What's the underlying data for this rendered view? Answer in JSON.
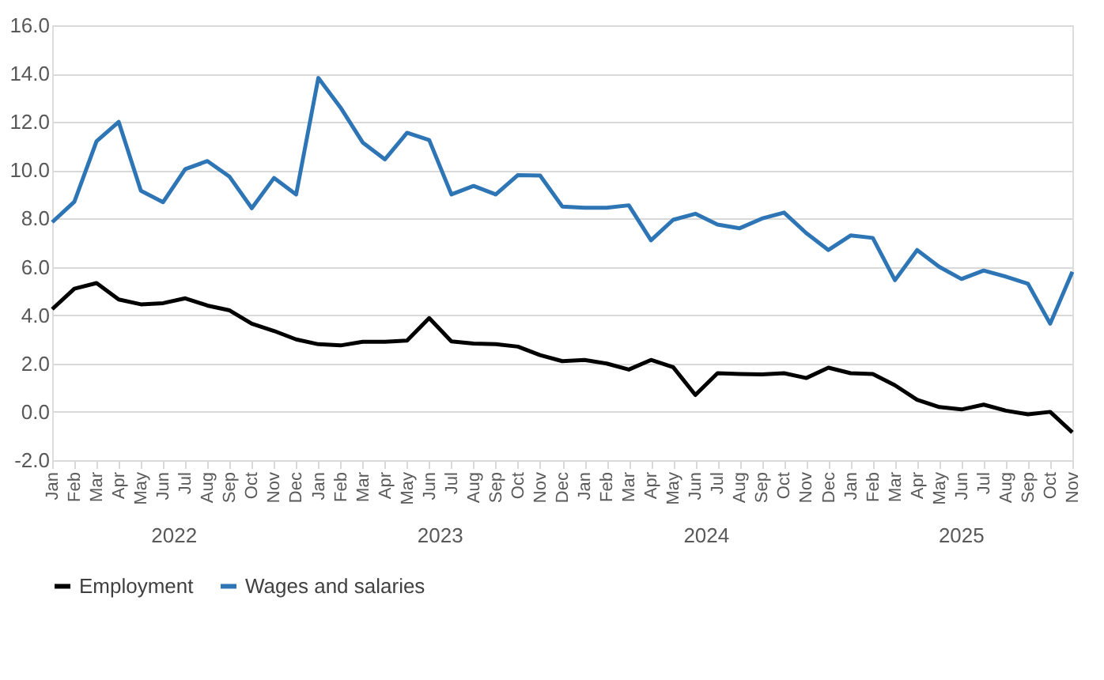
{
  "chart_data": {
    "type": "line",
    "categories": [
      "Jan",
      "Feb",
      "Mar",
      "Apr",
      "May",
      "Jun",
      "Jul",
      "Aug",
      "Sep",
      "Oct",
      "Nov",
      "Dec",
      "Jan",
      "Feb",
      "Mar",
      "Apr",
      "May",
      "Jun",
      "Jul",
      "Aug",
      "Sep",
      "Oct",
      "Nov",
      "Dec",
      "Jan",
      "Feb",
      "Mar",
      "Apr",
      "May",
      "Jun",
      "Jul",
      "Aug",
      "Sep",
      "Oct",
      "Nov",
      "Dec",
      "Jan",
      "Feb",
      "Mar",
      "Apr",
      "May",
      "Jun",
      "Jul",
      "Aug",
      "Sep",
      "Oct",
      "Nov"
    ],
    "series": [
      {
        "name": "Employment",
        "color": "#000000",
        "values": [
          4.25,
          5.1,
          5.33,
          4.65,
          4.45,
          4.5,
          4.7,
          4.4,
          4.2,
          3.65,
          3.35,
          3.0,
          2.8,
          2.75,
          2.9,
          2.9,
          2.95,
          3.88,
          2.92,
          2.83,
          2.8,
          2.7,
          2.35,
          2.1,
          2.15,
          2.0,
          1.75,
          2.15,
          1.85,
          0.7,
          1.6,
          1.57,
          1.55,
          1.6,
          1.4,
          1.83,
          1.6,
          1.57,
          1.1,
          0.5,
          0.2,
          0.1,
          0.3,
          0.05,
          -0.1,
          0.0,
          -0.85
        ]
      },
      {
        "name": "Wages and salaries",
        "color": "#2e75b6",
        "values": [
          7.85,
          8.7,
          11.2,
          12.0,
          9.15,
          8.68,
          10.05,
          10.38,
          9.73,
          8.43,
          9.68,
          9.0,
          13.82,
          12.6,
          11.15,
          10.45,
          11.55,
          11.25,
          9.0,
          9.35,
          9.0,
          9.8,
          9.78,
          8.5,
          8.45,
          8.45,
          8.55,
          7.1,
          7.95,
          8.2,
          7.75,
          7.6,
          8.0,
          8.25,
          7.4,
          6.7,
          7.3,
          7.2,
          5.45,
          6.7,
          6.0,
          5.5,
          5.85,
          5.6,
          5.3,
          3.65,
          5.8
        ]
      }
    ],
    "ylim": [
      -2,
      16
    ],
    "yticks": [
      {
        "value": -2,
        "label": "-2.0"
      },
      {
        "value": 0,
        "label": "0.0"
      },
      {
        "value": 2,
        "label": "2.0"
      },
      {
        "value": 4,
        "label": "4.0"
      },
      {
        "value": 6,
        "label": "6.0"
      },
      {
        "value": 8,
        "label": "8.0"
      },
      {
        "value": 10,
        "label": "10.0"
      },
      {
        "value": 12,
        "label": "12.0"
      },
      {
        "value": 14,
        "label": "14.0"
      },
      {
        "value": 16,
        "label": "16.0"
      }
    ],
    "annotations": [
      "2022",
      "2023",
      "2024",
      "2025"
    ],
    "grid": "y",
    "legend": "bottom",
    "line_style": "solid",
    "marker": "none"
  }
}
